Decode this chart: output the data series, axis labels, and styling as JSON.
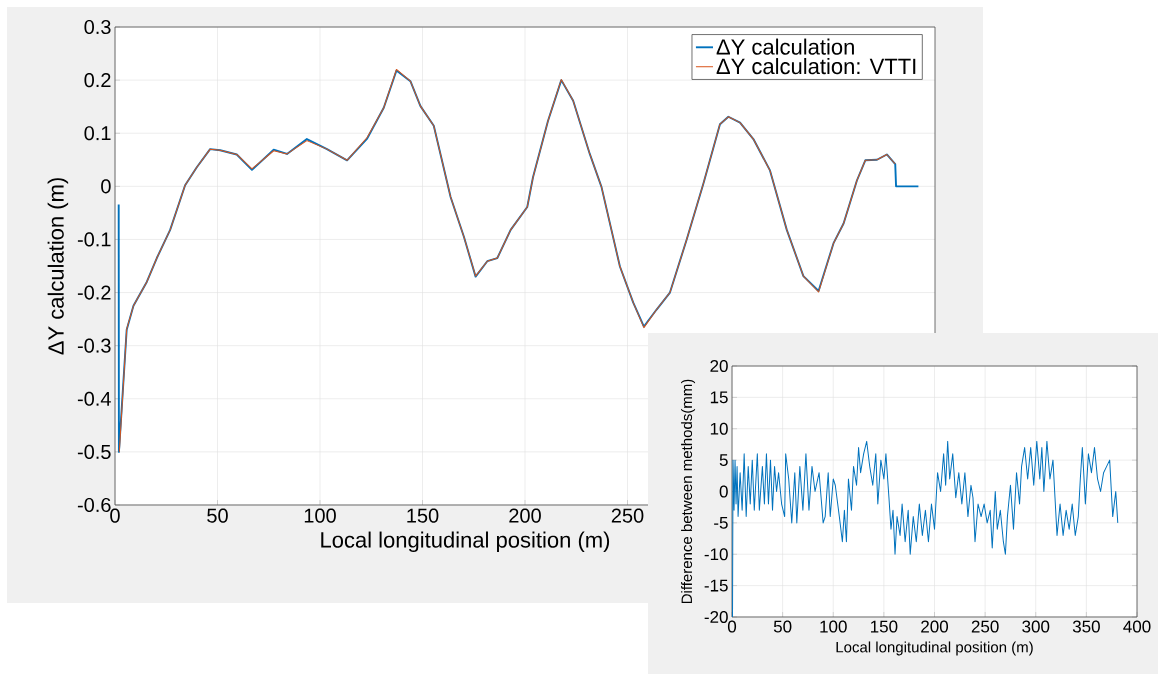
{
  "chart_data": [
    {
      "type": "line",
      "xlabel": "Local longitudinal position (m)",
      "ylabel": "ΔY calculation (m)",
      "xlim": [
        0,
        400
      ],
      "ylim": [
        -0.6,
        0.3
      ],
      "xticks": [
        0,
        50,
        100,
        150,
        200,
        250
      ],
      "yticks": [
        -0.6,
        -0.5,
        -0.4,
        -0.3,
        -0.2,
        -0.1,
        0,
        0.1,
        0.2,
        0.3
      ],
      "grid": true,
      "legend": "top right",
      "series": [
        {
          "name": "ΔY calculation",
          "color": "#0072bd",
          "x": [
            1.8,
            1.9,
            2.1,
            5.7,
            9,
            15.5,
            20.4,
            26.9,
            34.2,
            39.9,
            46.4,
            51.3,
            59.4,
            66.8,
            77.4,
            83.9,
            93.6,
            103.4,
            113.2,
            123,
            131.1,
            137.3,
            144.1,
            149,
            155.5,
            163.7,
            170.2,
            175.9,
            181.6,
            186.5,
            193,
            201.1,
            203.9,
            211.2,
            217.7,
            223.5,
            231.6,
            237.3,
            246.3,
            252.8,
            258,
            264.2,
            270.7,
            278.8,
            287,
            295.1,
            299.2,
            304.9,
            311.4,
            319.5,
            327.7,
            335.8,
            343.2,
            350.5,
            355.4,
            361.9,
            366,
            371.7,
            376.5,
            380.6,
            381,
            391.9
          ],
          "values": [
            -0.034,
            -0.5,
            -0.49,
            -0.27,
            -0.225,
            -0.18,
            -0.135,
            -0.082,
            0.002,
            0.036,
            0.07,
            0.068,
            0.06,
            0.031,
            0.069,
            0.061,
            0.089,
            0.07,
            0.049,
            0.09,
            0.148,
            0.218,
            0.198,
            0.151,
            0.114,
            -0.02,
            -0.095,
            -0.17,
            -0.141,
            -0.135,
            -0.082,
            -0.039,
            0.017,
            0.123,
            0.2,
            0.161,
            0.061,
            -0.001,
            -0.151,
            -0.219,
            -0.264,
            -0.232,
            -0.2,
            -0.101,
            0.005,
            0.117,
            0.131,
            0.12,
            0.089,
            0.03,
            -0.082,
            -0.169,
            -0.197,
            -0.107,
            -0.07,
            0.011,
            0.049,
            0.05,
            0.06,
            0.042,
            0,
            0
          ]
        },
        {
          "name": "ΔY calculation: VTTI",
          "color": "#d95319",
          "x": [
            2.1,
            5.7,
            9,
            15.5,
            20.4,
            26.9,
            34.2,
            39.9,
            46.4,
            51.3,
            59.4,
            66.8,
            77.4,
            83.9,
            93.6,
            103.4,
            113.2,
            123,
            131.1,
            137.3,
            144.1,
            149,
            155.5,
            163.7,
            170.2,
            175.9,
            181.6,
            186.5,
            193,
            201.1,
            203.9,
            211.2,
            217.7,
            223.5,
            231.6,
            237.3,
            246.3,
            252.8,
            258,
            264.2,
            270.7,
            278.8,
            287,
            295.1,
            299.2,
            304.9,
            311.4,
            319.5,
            327.7,
            335.8,
            343.2,
            350.5,
            355.4,
            361.9,
            366,
            371.7,
            376.5,
            380.6
          ],
          "values": [
            -0.5,
            -0.269,
            -0.225,
            -0.18,
            -0.135,
            -0.082,
            0.002,
            0.036,
            0.07,
            0.068,
            0.06,
            0.033,
            0.067,
            0.061,
            0.086,
            0.07,
            0.049,
            0.092,
            0.148,
            0.22,
            0.198,
            0.151,
            0.114,
            -0.02,
            -0.095,
            -0.169,
            -0.141,
            -0.135,
            -0.082,
            -0.039,
            0.017,
            0.123,
            0.201,
            0.161,
            0.061,
            -0.001,
            -0.151,
            -0.219,
            -0.266,
            -0.232,
            -0.2,
            -0.101,
            0.005,
            0.117,
            0.131,
            0.12,
            0.089,
            0.03,
            -0.082,
            -0.169,
            -0.199,
            -0.107,
            -0.07,
            0.011,
            0.049,
            0.05,
            0.06,
            0.042
          ]
        }
      ]
    },
    {
      "type": "line",
      "xlabel": "Local longitudinal position (m)",
      "ylabel": "Difference between methods(mm)",
      "xlim": [
        0,
        400
      ],
      "ylim": [
        -20,
        20
      ],
      "xticks": [
        0,
        50,
        100,
        150,
        200,
        250,
        300,
        350,
        400
      ],
      "yticks": [
        -20,
        -15,
        -10,
        -5,
        0,
        5,
        10,
        15,
        20
      ],
      "grid": true,
      "series": [
        {
          "color": "#0072bd",
          "x": [
            0.5,
            1,
            2,
            3,
            4,
            5,
            6,
            8,
            10,
            12,
            14,
            16,
            18,
            20,
            22,
            25,
            27,
            30,
            32,
            34,
            36,
            38,
            40,
            42,
            44,
            46,
            49,
            52,
            53,
            56,
            59,
            62,
            64,
            67,
            70,
            73,
            76,
            79,
            82,
            86,
            90,
            92,
            95,
            97,
            100,
            102,
            106,
            109,
            111,
            113,
            115,
            118,
            120,
            123,
            125,
            127,
            130,
            133,
            136,
            139,
            142,
            144,
            147,
            150,
            152,
            155,
            157,
            159,
            161,
            163,
            166,
            168,
            171,
            174,
            176,
            179,
            182,
            185,
            188,
            191,
            194,
            197,
            200,
            203,
            206,
            209,
            211,
            213,
            215,
            218,
            221,
            224,
            227,
            230,
            233,
            236,
            238,
            240,
            243,
            246,
            249,
            252,
            255,
            257,
            260,
            262,
            265,
            268,
            270,
            272,
            275,
            278,
            281,
            284,
            286,
            289,
            292,
            295,
            298,
            301,
            304,
            306,
            308,
            311,
            314,
            317,
            319,
            321,
            324,
            327,
            330,
            333,
            336,
            339,
            342,
            344,
            346,
            349,
            352,
            355,
            358,
            361,
            364,
            367,
            370,
            373,
            376,
            379,
            381
          ],
          "values": [
            -20,
            5,
            -3,
            5,
            -2,
            4,
            -4,
            3,
            -3,
            6,
            -4,
            4,
            -2,
            5,
            -3,
            6,
            -3,
            4,
            -2,
            6,
            -2,
            5,
            -3,
            4,
            0,
            3,
            -2,
            -4,
            6,
            2,
            -5,
            3,
            -5,
            4,
            -3,
            6,
            -3,
            4,
            0,
            3,
            -5,
            -4,
            3,
            -4,
            2,
            1,
            -4,
            -8,
            -3,
            -8,
            2,
            -3,
            4,
            1,
            7,
            3,
            6,
            8,
            4,
            1,
            6,
            -2,
            5,
            2,
            6,
            -1,
            -6,
            -3,
            -10,
            -4,
            -7,
            -2,
            -8,
            -3,
            -10,
            -4,
            -8,
            -2,
            -7,
            -3,
            -8,
            -2,
            -6,
            3,
            0,
            6,
            1,
            8,
            2,
            6,
            -1,
            3,
            -2,
            3,
            -4,
            1,
            -1,
            -8,
            -2,
            -4,
            -2,
            -5,
            -3,
            -9,
            0,
            -6,
            -3,
            -8,
            -10,
            -4,
            1,
            -6,
            3,
            -2,
            4,
            7,
            2,
            7,
            1,
            8,
            2,
            7,
            0,
            8,
            2,
            5,
            -1,
            -7,
            -2,
            -7,
            -3,
            -6,
            -2,
            -7,
            -4,
            2,
            7,
            -2,
            6,
            3,
            7,
            2,
            0,
            3,
            4,
            5,
            -4,
            0,
            -5
          ]
        }
      ]
    }
  ]
}
